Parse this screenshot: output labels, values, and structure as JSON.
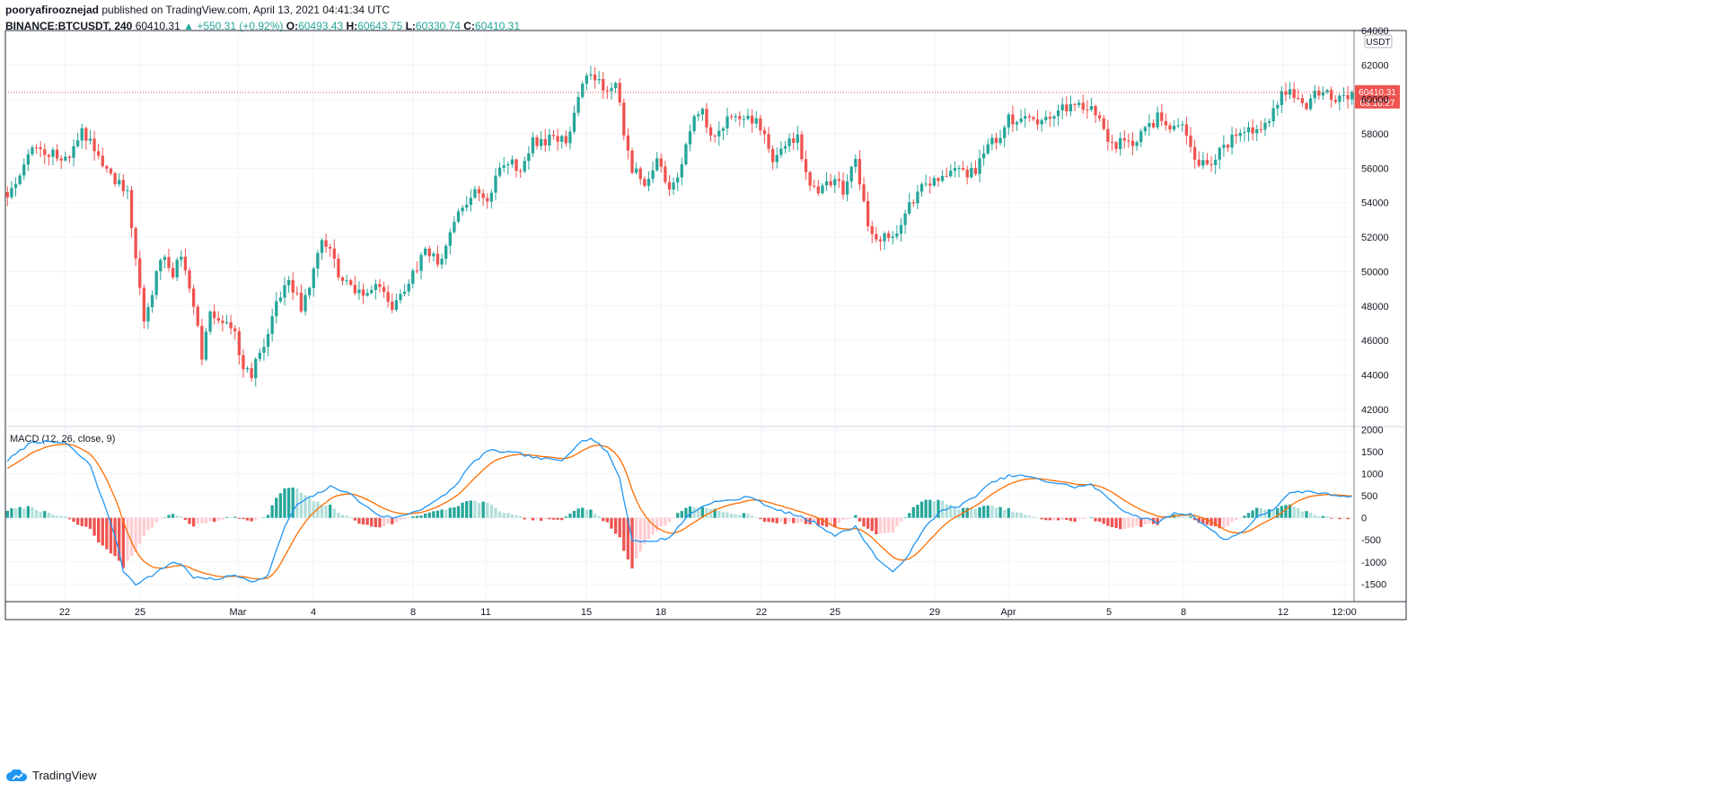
{
  "header": {
    "author": "pooryafirooznejad",
    "published_text": "published on TradingView.com, April 13, 2021 04:41:34 UTC"
  },
  "legend": {
    "symbol": "BINANCE:BTCUSDT, 240",
    "last": "60410.31",
    "change": "▲ +550.31 (+0.92%)",
    "o_label": "O:",
    "o": "60493.43",
    "h_label": "H:",
    "h": "60643.75",
    "l_label": "L:",
    "l": "60330.74",
    "c_label": "C:",
    "c": "60410.31"
  },
  "footer": {
    "brand": "TradingView"
  },
  "colors": {
    "up": "#26a69a",
    "down": "#ef5350",
    "macd": "#2196f3",
    "signal": "#ff6d00",
    "hist_up_strong": "#26a69a",
    "hist_up_weak": "#b2dfdb",
    "hist_dn_strong": "#ef5350",
    "hist_dn_weak": "#ffcdd2"
  },
  "chart_data": [
    {
      "type": "candlestick",
      "currency_label": "USDT",
      "ylim": [
        41000,
        64000
      ],
      "y_ticks": [
        42000,
        44000,
        46000,
        48000,
        50000,
        52000,
        54000,
        56000,
        58000,
        60000,
        62000,
        64000
      ],
      "x_tick_labels": [
        "22",
        "25",
        "Mar",
        "4",
        "8",
        "11",
        "15",
        "18",
        "22",
        "25",
        "29",
        "Apr",
        "5",
        "8",
        "12",
        "12:00"
      ],
      "last_price_label": "60410.31",
      "countdown_label": "03:18:27",
      "close_path": [
        [
          0,
          54500
        ],
        [
          6,
          57200
        ],
        [
          14,
          56500
        ],
        [
          18,
          58000
        ],
        [
          20,
          57500
        ],
        [
          26,
          55300
        ],
        [
          29,
          54700
        ],
        [
          31,
          50500
        ],
        [
          33,
          47000
        ],
        [
          35,
          48500
        ],
        [
          37,
          51000
        ],
        [
          40,
          50000
        ],
        [
          42,
          51000
        ],
        [
          45,
          48200
        ],
        [
          47,
          45000
        ],
        [
          49,
          47500
        ],
        [
          52,
          47000
        ],
        [
          55,
          46500
        ],
        [
          57,
          44500
        ],
        [
          59,
          44000
        ],
        [
          63,
          46500
        ],
        [
          65,
          48500
        ],
        [
          68,
          49500
        ],
        [
          71,
          48000
        ],
        [
          73,
          49200
        ],
        [
          76,
          51800
        ],
        [
          78,
          51000
        ],
        [
          81,
          49500
        ],
        [
          84,
          48600
        ],
        [
          87,
          48800
        ],
        [
          90,
          49300
        ],
        [
          93,
          48000
        ],
        [
          97,
          49500
        ],
        [
          101,
          51000
        ],
        [
          105,
          50500
        ],
        [
          109,
          53500
        ],
        [
          113,
          54500
        ],
        [
          116,
          54200
        ],
        [
          120,
          56500
        ],
        [
          124,
          56000
        ],
        [
          127,
          57500
        ],
        [
          131,
          57600
        ],
        [
          136,
          57800
        ],
        [
          138,
          60400
        ],
        [
          141,
          61500
        ],
        [
          144,
          60500
        ],
        [
          147,
          61000
        ],
        [
          149,
          58000
        ],
        [
          151,
          56000
        ],
        [
          154,
          55000
        ],
        [
          157,
          56500
        ],
        [
          160,
          55000
        ],
        [
          162,
          55500
        ],
        [
          165,
          58500
        ],
        [
          168,
          59200
        ],
        [
          170,
          58000
        ],
        [
          173,
          58500
        ],
        [
          176,
          59000
        ],
        [
          179,
          59200
        ],
        [
          182,
          58300
        ],
        [
          185,
          56500
        ],
        [
          188,
          57500
        ],
        [
          191,
          57800
        ],
        [
          193,
          55700
        ],
        [
          196,
          54500
        ],
        [
          199,
          55200
        ],
        [
          202,
          54800
        ],
        [
          205,
          56700
        ],
        [
          208,
          52500
        ],
        [
          211,
          52000
        ],
        [
          214,
          52000
        ],
        [
          216,
          53000
        ],
        [
          219,
          54200
        ],
        [
          222,
          55000
        ],
        [
          225,
          55300
        ],
        [
          228,
          56000
        ],
        [
          231,
          55600
        ],
        [
          234,
          55800
        ],
        [
          237,
          57500
        ],
        [
          240,
          57700
        ],
        [
          242,
          58800
        ],
        [
          245,
          59000
        ],
        [
          248,
          58600
        ],
        [
          251,
          59000
        ],
        [
          254,
          59300
        ],
        [
          256,
          59500
        ],
        [
          259,
          59700
        ],
        [
          262,
          59600
        ],
        [
          264,
          58700
        ],
        [
          266,
          57200
        ],
        [
          269,
          57600
        ],
        [
          272,
          57400
        ],
        [
          275,
          58200
        ],
        [
          278,
          58900
        ],
        [
          281,
          58600
        ],
        [
          284,
          58200
        ],
        [
          287,
          56800
        ],
        [
          290,
          55900
        ],
        [
          293,
          56900
        ],
        [
          296,
          57800
        ],
        [
          299,
          58200
        ],
        [
          302,
          58400
        ],
        [
          305,
          58600
        ],
        [
          308,
          60700
        ],
        [
          311,
          60300
        ],
        [
          314,
          59700
        ],
        [
          317,
          60500
        ],
        [
          320,
          60100
        ],
        [
          323,
          60000
        ],
        [
          325,
          60410
        ]
      ],
      "candle_count": 326,
      "seed": 12
    },
    {
      "type": "macd",
      "title": "MACD (12, 26, close, 9)",
      "ylim": [
        -1900,
        2050
      ],
      "y_ticks": [
        -1500,
        -1000,
        -500,
        0,
        500,
        1000,
        1500,
        2000
      ],
      "macd_path": [
        [
          0,
          1300
        ],
        [
          6,
          1730
        ],
        [
          14,
          1700
        ],
        [
          20,
          1200
        ],
        [
          26,
          -400
        ],
        [
          28,
          -1200
        ],
        [
          31,
          -1500
        ],
        [
          35,
          -1300
        ],
        [
          40,
          -1000
        ],
        [
          42,
          -1050
        ],
        [
          45,
          -1350
        ],
        [
          50,
          -1400
        ],
        [
          55,
          -1300
        ],
        [
          60,
          -1450
        ],
        [
          63,
          -1300
        ],
        [
          67,
          -200
        ],
        [
          70,
          300
        ],
        [
          74,
          500
        ],
        [
          78,
          700
        ],
        [
          82,
          600
        ],
        [
          86,
          300
        ],
        [
          90,
          50
        ],
        [
          94,
          0
        ],
        [
          100,
          200
        ],
        [
          104,
          400
        ],
        [
          108,
          700
        ],
        [
          112,
          1200
        ],
        [
          116,
          1520
        ],
        [
          120,
          1500
        ],
        [
          124,
          1450
        ],
        [
          128,
          1350
        ],
        [
          134,
          1300
        ],
        [
          138,
          1700
        ],
        [
          141,
          1810
        ],
        [
          145,
          1500
        ],
        [
          148,
          900
        ],
        [
          151,
          -500
        ],
        [
          155,
          -550
        ],
        [
          160,
          -450
        ],
        [
          165,
          100
        ],
        [
          170,
          350
        ],
        [
          175,
          400
        ],
        [
          180,
          480
        ],
        [
          185,
          200
        ],
        [
          190,
          80
        ],
        [
          195,
          -100
        ],
        [
          200,
          -400
        ],
        [
          205,
          -200
        ],
        [
          210,
          -900
        ],
        [
          214,
          -1250
        ],
        [
          218,
          -800
        ],
        [
          222,
          -200
        ],
        [
          226,
          200
        ],
        [
          230,
          250
        ],
        [
          234,
          500
        ],
        [
          238,
          800
        ],
        [
          242,
          950
        ],
        [
          246,
          950
        ],
        [
          250,
          850
        ],
        [
          254,
          780
        ],
        [
          258,
          700
        ],
        [
          262,
          750
        ],
        [
          266,
          450
        ],
        [
          270,
          150
        ],
        [
          274,
          0
        ],
        [
          278,
          -100
        ],
        [
          282,
          100
        ],
        [
          286,
          80
        ],
        [
          290,
          -200
        ],
        [
          294,
          -500
        ],
        [
          298,
          -350
        ],
        [
          302,
          0
        ],
        [
          306,
          200
        ],
        [
          310,
          550
        ],
        [
          314,
          600
        ],
        [
          318,
          550
        ],
        [
          322,
          500
        ],
        [
          325,
          500
        ]
      ],
      "smoothing": 9,
      "seed": 7
    }
  ]
}
